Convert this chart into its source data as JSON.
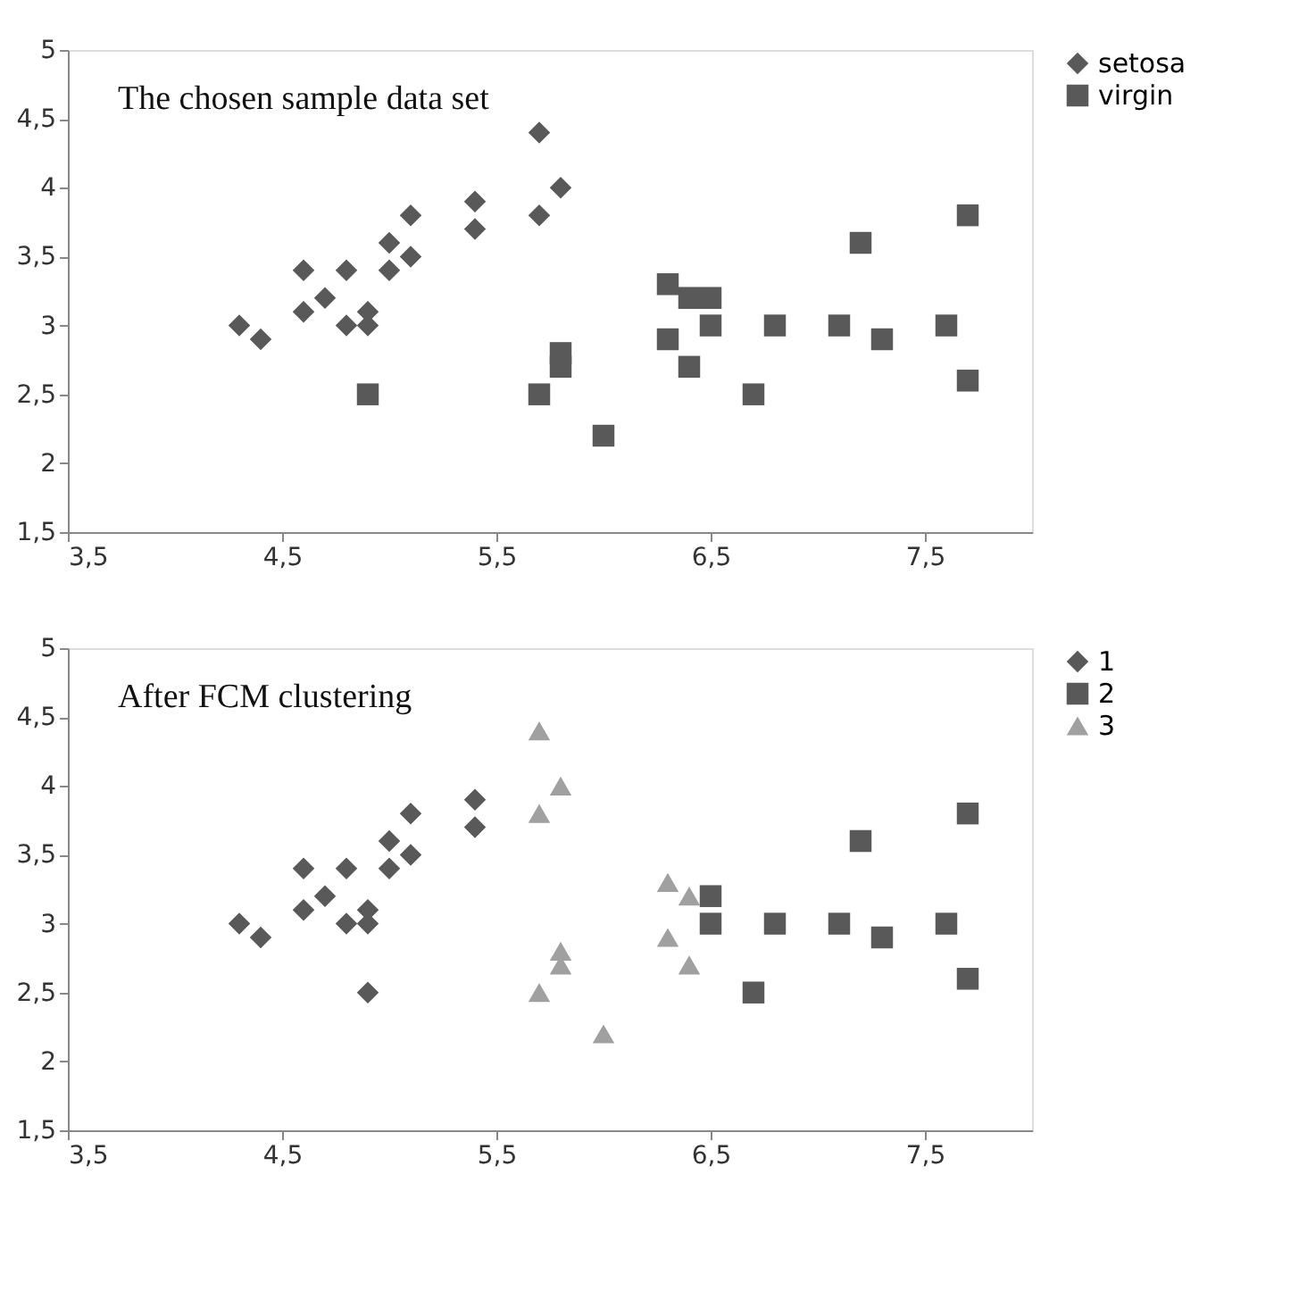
{
  "chart_data": [
    {
      "type": "scatter",
      "title": "The chosen sample data set",
      "xlim": [
        3.5,
        8
      ],
      "ylim": [
        1.5,
        5
      ],
      "xticks": [
        {
          "value": 3.5,
          "label": "3,5"
        },
        {
          "value": 4.5,
          "label": "4,5"
        },
        {
          "value": 5.5,
          "label": "5,5"
        },
        {
          "value": 6.5,
          "label": "6,5"
        },
        {
          "value": 7.5,
          "label": "7,5"
        }
      ],
      "yticks": [
        {
          "value": 1.5,
          "label": "1,5"
        },
        2,
        {
          "value": 2.5,
          "label": "2,5"
        },
        3,
        {
          "value": 3.5,
          "label": "3,5"
        },
        4,
        {
          "value": 4.5,
          "label": "4,5"
        },
        5
      ],
      "grid": false,
      "legend": "right",
      "series": [
        {
          "name": "setosa",
          "color": "#595959",
          "marker": "diamond",
          "x": [
            4.3,
            4.4,
            4.6,
            4.6,
            4.7,
            4.8,
            4.8,
            4.9,
            4.9,
            5.0,
            5.0,
            5.1,
            5.1,
            5.4,
            5.4,
            5.7,
            5.7,
            5.8
          ],
          "values": [
            3.0,
            2.9,
            3.4,
            3.1,
            3.2,
            3.4,
            3.0,
            3.1,
            3.0,
            3.6,
            3.4,
            3.8,
            3.5,
            3.9,
            3.7,
            4.4,
            3.8,
            4.0
          ]
        },
        {
          "name": "virgin",
          "color": "#595959",
          "marker": "square",
          "x": [
            4.9,
            5.7,
            5.8,
            5.8,
            6.0,
            6.3,
            6.3,
            6.4,
            6.5,
            6.5,
            6.4,
            6.7,
            6.8,
            7.1,
            7.2,
            7.3,
            7.6,
            7.7,
            7.7
          ],
          "values": [
            2.5,
            2.5,
            2.8,
            2.7,
            2.2,
            3.3,
            2.9,
            3.2,
            3.2,
            3.0,
            2.7,
            2.5,
            3.0,
            3.0,
            3.6,
            2.9,
            3.0,
            3.8,
            2.6
          ]
        }
      ]
    },
    {
      "type": "scatter",
      "title": "After FCM clustering",
      "xlim": [
        3.5,
        8
      ],
      "ylim": [
        1.5,
        5
      ],
      "xticks": [
        {
          "value": 3.5,
          "label": "3,5"
        },
        {
          "value": 4.5,
          "label": "4,5"
        },
        {
          "value": 5.5,
          "label": "5,5"
        },
        {
          "value": 6.5,
          "label": "6,5"
        },
        {
          "value": 7.5,
          "label": "7,5"
        }
      ],
      "yticks": [
        {
          "value": 1.5,
          "label": "1,5"
        },
        2,
        {
          "value": 2.5,
          "label": "2,5"
        },
        3,
        {
          "value": 3.5,
          "label": "3,5"
        },
        4,
        {
          "value": 4.5,
          "label": "4,5"
        },
        5
      ],
      "grid": false,
      "legend": "right",
      "series": [
        {
          "name": "1",
          "color": "#595959",
          "marker": "diamond",
          "x": [
            4.3,
            4.4,
            4.6,
            4.6,
            4.7,
            4.8,
            4.8,
            4.9,
            4.9,
            4.9,
            5.0,
            5.0,
            5.1,
            5.1,
            5.4,
            5.4
          ],
          "values": [
            3.0,
            2.9,
            3.4,
            3.1,
            3.2,
            3.4,
            3.0,
            3.1,
            3.0,
            2.5,
            3.6,
            3.4,
            3.8,
            3.5,
            3.9,
            3.7
          ]
        },
        {
          "name": "2",
          "color": "#595959",
          "marker": "square",
          "x": [
            6.5,
            6.5,
            6.7,
            6.8,
            7.1,
            7.2,
            7.3,
            7.6,
            7.7,
            7.7
          ],
          "values": [
            3.2,
            3.0,
            2.5,
            3.0,
            3.0,
            3.6,
            2.9,
            3.0,
            3.8,
            2.6
          ]
        },
        {
          "name": "3",
          "color": "#a0a0a0",
          "marker": "triangle",
          "x": [
            5.7,
            5.7,
            5.8,
            5.7,
            5.8,
            5.8,
            6.0,
            6.3,
            6.3,
            6.4,
            6.4
          ],
          "values": [
            4.4,
            3.8,
            4.0,
            2.5,
            2.8,
            2.7,
            2.2,
            3.3,
            2.9,
            3.2,
            2.7
          ]
        }
      ]
    }
  ]
}
